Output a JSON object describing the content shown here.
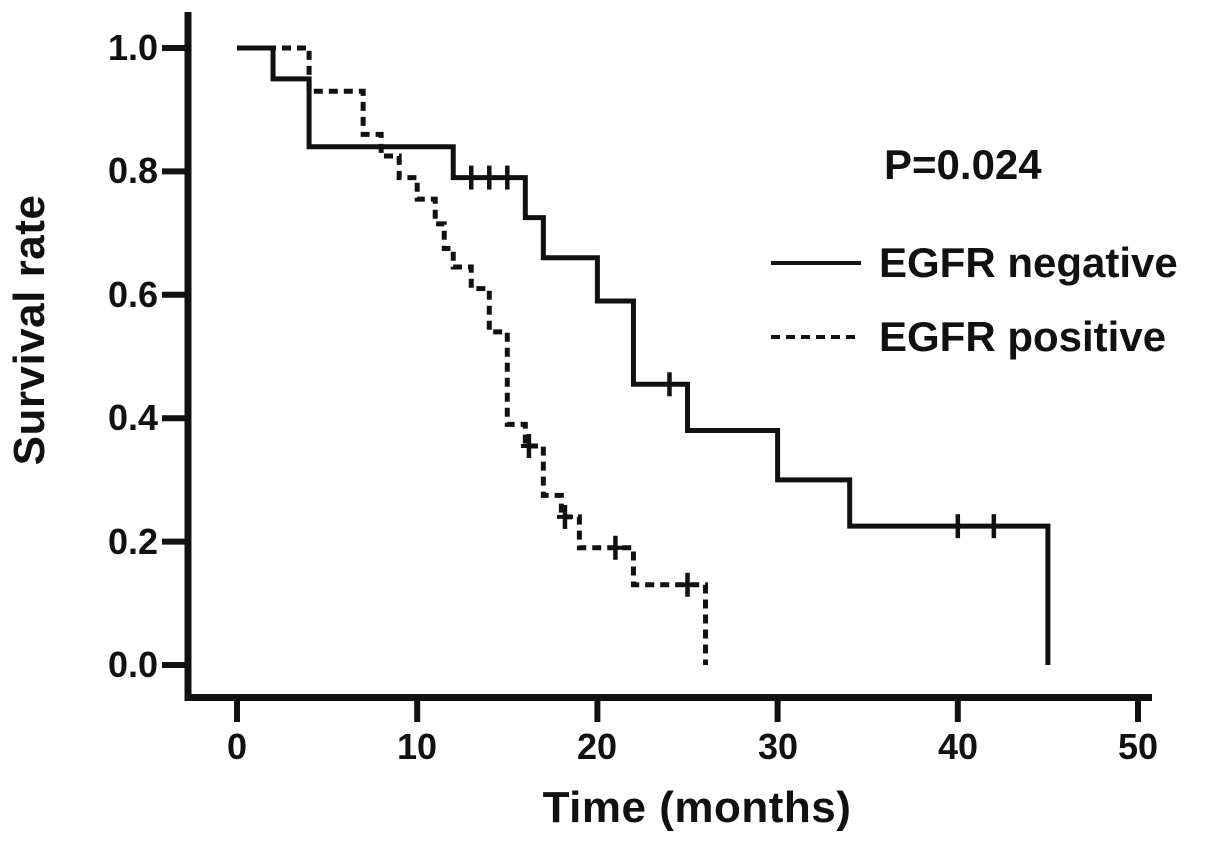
{
  "figure": {
    "kind": "Kaplan-Meier survival plot",
    "p_value_label": "P=0.024",
    "line_color": "#111111",
    "background_color": "#ffffff"
  },
  "chart_data": {
    "type": "line",
    "subtype": "kaplan-meier-step",
    "title": "",
    "xlabel": "Time (months)",
    "ylabel": "Survival rate",
    "annotation": "P=0.024",
    "xlim": [
      0,
      50
    ],
    "ylim": [
      0.0,
      1.0
    ],
    "grid": false,
    "legend_position": "right-middle",
    "x_ticks": [
      0,
      10,
      20,
      30,
      40,
      50
    ],
    "x_tick_labels": [
      "0",
      "10",
      "20",
      "30",
      "40",
      "50"
    ],
    "y_ticks": [
      1.0,
      0.8,
      0.6,
      0.4,
      0.2,
      0.0
    ],
    "y_tick_labels": [
      "1.0",
      "0.8",
      "0.6",
      "0.4",
      "0.2",
      "0.0"
    ],
    "series": [
      {
        "name": "EGFR negative",
        "line_style": "solid",
        "steps": [
          [
            0,
            1.0
          ],
          [
            2,
            0.95
          ],
          [
            4,
            0.84
          ],
          [
            12,
            0.79
          ],
          [
            16,
            0.725
          ],
          [
            17,
            0.66
          ],
          [
            20,
            0.59
          ],
          [
            22,
            0.455
          ],
          [
            25,
            0.38
          ],
          [
            30,
            0.3
          ],
          [
            34,
            0.225
          ],
          [
            45,
            0.0
          ]
        ],
        "censored": [
          [
            13,
            0.79
          ],
          [
            14,
            0.79
          ],
          [
            15,
            0.79
          ],
          [
            24,
            0.455
          ],
          [
            40,
            0.225
          ],
          [
            42,
            0.225
          ]
        ]
      },
      {
        "name": "EGFR positive",
        "line_style": "dashed",
        "steps": [
          [
            0,
            1.0
          ],
          [
            4,
            0.93
          ],
          [
            7,
            0.86
          ],
          [
            8,
            0.825
          ],
          [
            9,
            0.79
          ],
          [
            10,
            0.755
          ],
          [
            11,
            0.715
          ],
          [
            11.5,
            0.675
          ],
          [
            12,
            0.645
          ],
          [
            13,
            0.61
          ],
          [
            14,
            0.54
          ],
          [
            15,
            0.39
          ],
          [
            16,
            0.355
          ],
          [
            17,
            0.275
          ],
          [
            18,
            0.24
          ],
          [
            19,
            0.19
          ],
          [
            22,
            0.13
          ],
          [
            26,
            0.0
          ]
        ],
        "censored": [
          [
            16.2,
            0.355
          ],
          [
            18.2,
            0.24
          ],
          [
            21,
            0.19
          ],
          [
            25,
            0.13
          ]
        ]
      }
    ]
  }
}
